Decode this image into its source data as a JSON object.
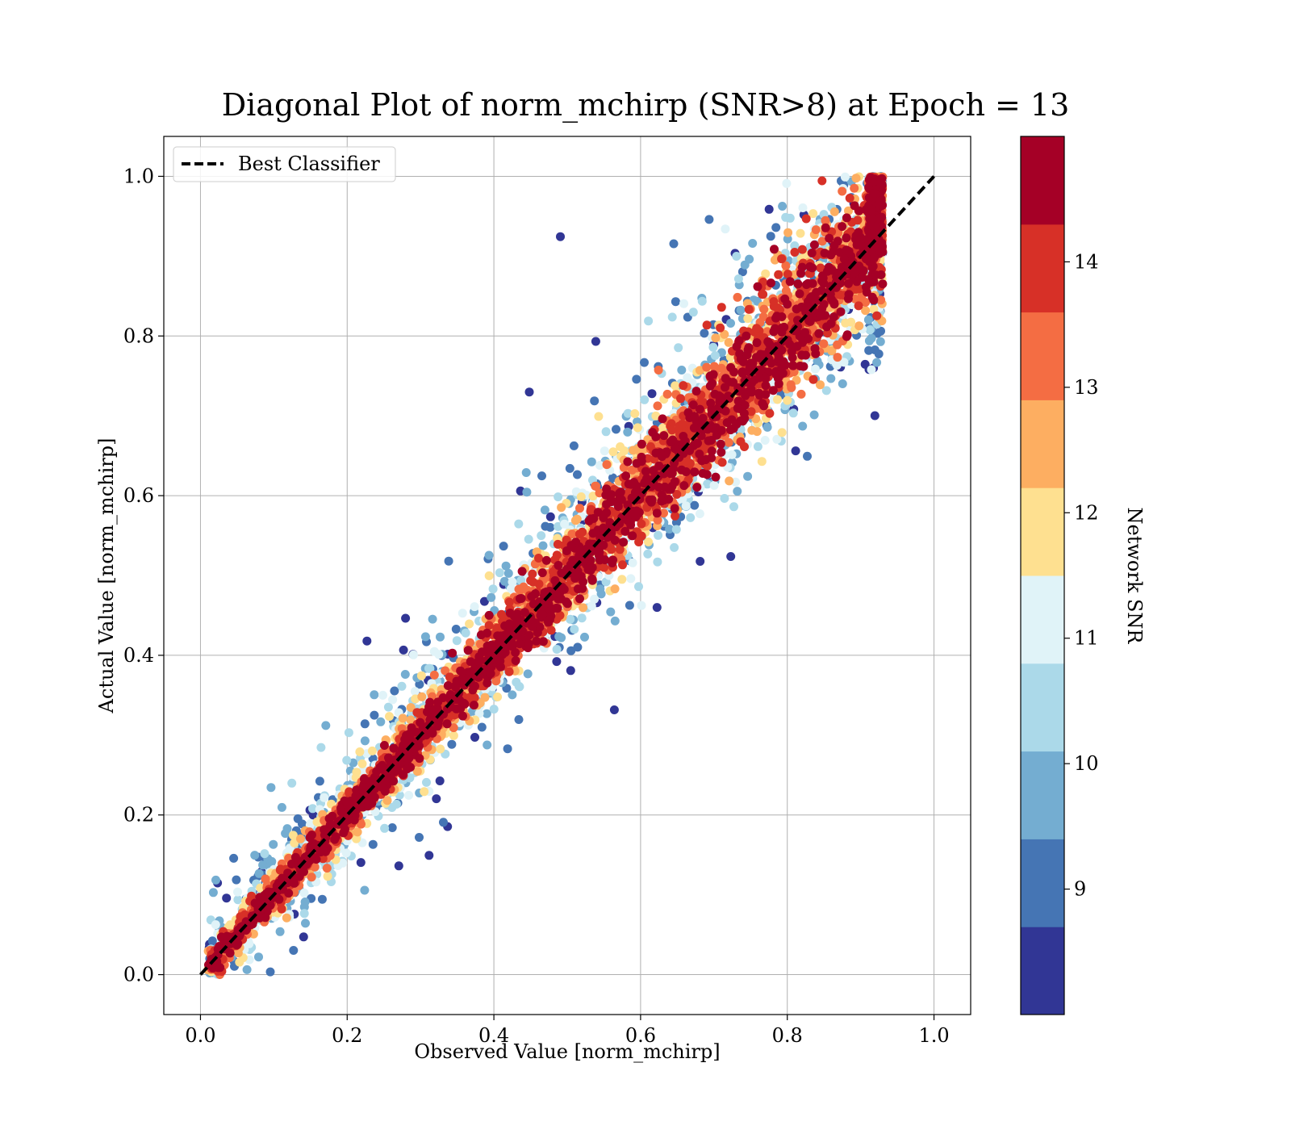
{
  "chart_data": {
    "type": "scatter",
    "title": "Diagonal Plot of norm_mchirp (SNR>8) at Epoch = 13",
    "xlabel": "Observed Value [norm_mchirp]",
    "ylabel": "Actual Value [norm_mchirp]",
    "xlim": [
      -0.05,
      1.05
    ],
    "ylim": [
      -0.05,
      1.05
    ],
    "xticks": [
      "0.0",
      "0.2",
      "0.4",
      "0.6",
      "0.8",
      "1.0"
    ],
    "yticks": [
      "0.0",
      "0.2",
      "0.4",
      "0.6",
      "0.8",
      "1.0"
    ],
    "grid": true,
    "legend": {
      "position": "upper-left",
      "entries": [
        {
          "label": "Best Classifier",
          "style": "dashed",
          "color": "#000000"
        }
      ]
    },
    "reference_line": {
      "name": "Best Classifier",
      "x": [
        0.0,
        1.0
      ],
      "y": [
        0.0,
        1.0
      ]
    },
    "scatter_extent": {
      "x_max": 0.93,
      "y_range": [
        0.0,
        1.0
      ]
    },
    "colorbar": {
      "label": "Network SNR",
      "range": [
        8.0,
        15.0
      ],
      "ticks": [
        "9",
        "10",
        "11",
        "12",
        "13",
        "14"
      ],
      "colors": [
        "#313695",
        "#4575b4",
        "#74add1",
        "#abd9e9",
        "#e0f3f8",
        "#fee090",
        "#fdae61",
        "#f46d43",
        "#d73027",
        "#a50026"
      ]
    }
  }
}
